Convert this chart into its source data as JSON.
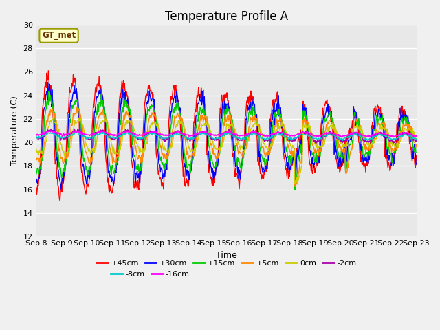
{
  "title": "Temperature Profile A",
  "xlabel": "Time",
  "ylabel": "Temperature (C)",
  "ylim": [
    12,
    30
  ],
  "xtick_labels": [
    "Sep 8",
    "Sep 9",
    "Sep 10",
    "Sep 11",
    "Sep 12",
    "Sep 13",
    "Sep 14",
    "Sep 15",
    "Sep 16",
    "Sep 17",
    "Sep 18",
    "Sep 19",
    "Sep 20",
    "Sep 21",
    "Sep 22",
    "Sep 23"
  ],
  "fig_bg": "#f0f0f0",
  "plot_bg": "#e8e8e8",
  "grid_color": "#ffffff",
  "legend_label": "GT_met",
  "legend_box_fc": "#ffffcc",
  "legend_box_ec": "#999900",
  "legend_text_color": "#663300",
  "series": [
    {
      "label": "+45cm",
      "color": "#ff0000",
      "lw": 1.0
    },
    {
      "label": "+30cm",
      "color": "#0000ff",
      "lw": 1.0
    },
    {
      "label": "+15cm",
      "color": "#00cc00",
      "lw": 1.0
    },
    {
      "label": "+5cm",
      "color": "#ff8800",
      "lw": 1.0
    },
    {
      "label": "0cm",
      "color": "#cccc00",
      "lw": 1.0
    },
    {
      "label": "-2cm",
      "color": "#aa00aa",
      "lw": 1.2
    },
    {
      "label": "-8cm",
      "color": "#00cccc",
      "lw": 1.0
    },
    {
      "label": "-16cm",
      "color": "#ff00ff",
      "lw": 1.2
    }
  ],
  "title_fontsize": 12,
  "axis_fontsize": 9,
  "tick_fontsize": 8,
  "legend_fontsize": 8
}
